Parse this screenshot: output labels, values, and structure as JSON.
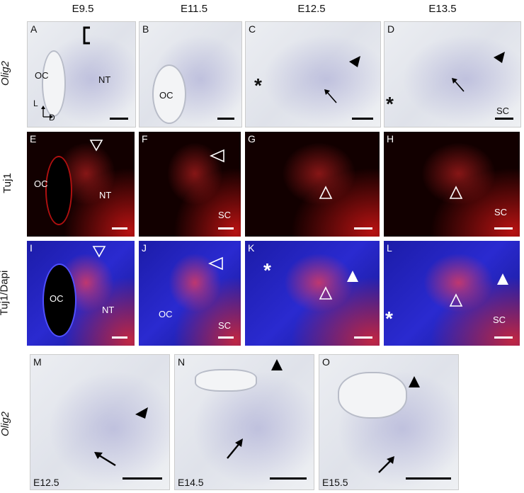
{
  "columns": [
    "E9.5",
    "E11.5",
    "E12.5",
    "E13.5"
  ],
  "rows": [
    "Olig2",
    "Tuj1",
    "Tuj1/Dapi",
    "Olig2"
  ],
  "axis": {
    "lateral": "L",
    "dorsal": "D"
  },
  "panels": {
    "A": {
      "label": "A",
      "texts": [
        "OC",
        "NT"
      ]
    },
    "B": {
      "label": "B",
      "texts": [
        "OC"
      ]
    },
    "C": {
      "label": "C",
      "texts": []
    },
    "D": {
      "label": "D",
      "texts": [
        "SC"
      ]
    },
    "E": {
      "label": "E",
      "texts": [
        "OC",
        "NT"
      ]
    },
    "F": {
      "label": "F",
      "texts": [
        "SC"
      ]
    },
    "G": {
      "label": "G",
      "texts": []
    },
    "H": {
      "label": "H",
      "texts": [
        "SC"
      ]
    },
    "I": {
      "label": "I",
      "texts": [
        "OC",
        "NT"
      ]
    },
    "J": {
      "label": "J",
      "texts": [
        "OC",
        "SC"
      ]
    },
    "K": {
      "label": "K",
      "texts": []
    },
    "L": {
      "label": "L",
      "texts": [
        "SC"
      ]
    },
    "M": {
      "label": "M",
      "stage": "E12.5"
    },
    "N": {
      "label": "N",
      "stage": "E14.5"
    },
    "O": {
      "label": "O",
      "stage": "E15.5"
    }
  }
}
